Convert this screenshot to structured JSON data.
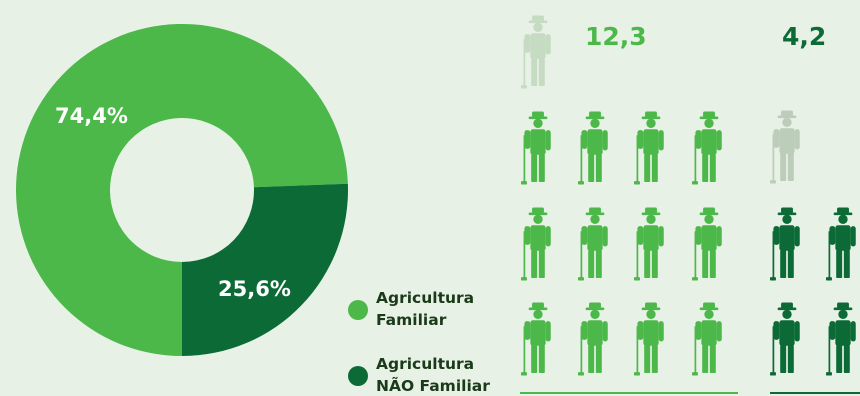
{
  "colors": {
    "background": "#e8f1e6",
    "familiar": "#4cb84a",
    "nao_familiar": "#0b6a35",
    "ghost_familiar": "#c5dcc3",
    "ghost_nao_familiar": "#bccdba"
  },
  "chart_data": [
    {
      "type": "pie",
      "donut": true,
      "categories": [
        "Agricultura Familiar",
        "Agricultura NÃO Familiar"
      ],
      "values": [
        74.4,
        25.6
      ],
      "labels": [
        "74,4%",
        "25,6%"
      ]
    },
    {
      "type": "pictograph",
      "icon": "farmer-icon",
      "series": [
        {
          "category": "Agricultura Familiar",
          "value": 12.3,
          "label": "12,3"
        },
        {
          "category": "Agricultura NÃO Familiar",
          "value": 4.2,
          "label": "4,2"
        }
      ]
    }
  ],
  "legend": {
    "items": [
      {
        "line1": "Agricultura",
        "line2": "Familiar"
      },
      {
        "line1": "Agricultura",
        "line2": "NÃO Familiar"
      }
    ]
  }
}
